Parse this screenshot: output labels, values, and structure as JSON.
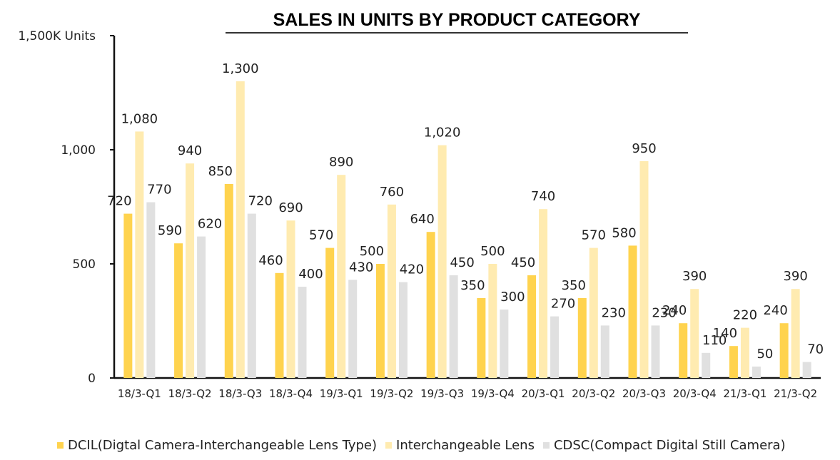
{
  "chart_data": {
    "type": "bar",
    "title": "SALES IN UNITS BY PRODUCT CATEGORY",
    "xlabel": "",
    "ylabel": "1,500K Units",
    "ylim": [
      0,
      1500
    ],
    "yticks": [
      {
        "value": 0,
        "label": "0"
      },
      {
        "value": 500,
        "label": "500"
      },
      {
        "value": 1000,
        "label": "1,000"
      },
      {
        "value": 1500,
        "label": "1,500K Units"
      }
    ],
    "grid": false,
    "legend_position": "bottom",
    "categories": [
      "18/3-Q1",
      "18/3-Q2",
      "18/3-Q3",
      "18/3-Q4",
      "19/3-Q1",
      "19/3-Q2",
      "19/3-Q3",
      "19/3-Q4",
      "20/3-Q1",
      "20/3-Q2",
      "20/3-Q3",
      "20/3-Q4",
      "21/3-Q1",
      "21/3-Q2"
    ],
    "series": [
      {
        "name": "DCIL(Digtal Camera-Interchangeable Lens Type)",
        "color": "#FFD34E",
        "values": [
          720,
          590,
          850,
          460,
          570,
          500,
          640,
          350,
          450,
          350,
          580,
          240,
          140,
          240
        ]
      },
      {
        "name": "Interchangeable Lens",
        "color": "#FFEBB0",
        "values": [
          1080,
          940,
          1300,
          690,
          890,
          760,
          1020,
          500,
          740,
          570,
          950,
          390,
          220,
          390
        ]
      },
      {
        "name": "CDSC(Compact Digital Still Camera)",
        "color": "#E0E0E0",
        "values": [
          770,
          620,
          720,
          400,
          430,
          420,
          450,
          300,
          270,
          230,
          230,
          110,
          50,
          70
        ]
      }
    ]
  }
}
